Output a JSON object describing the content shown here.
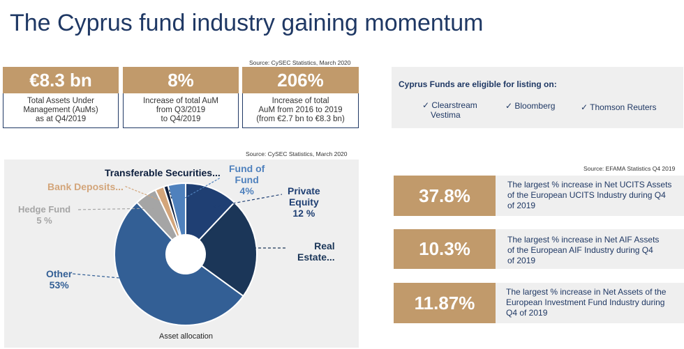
{
  "title": "The Cyprus fund industry gaining momentum",
  "kpi_source": "Source: CySEC Statistics, March 2020",
  "kpis": [
    {
      "value": "€8.3 bn",
      "lines": [
        "Total Assets Under",
        "Management (AuMs)",
        "as at Q4/2019"
      ]
    },
    {
      "value": "8%",
      "lines": [
        "Increase of total AuM",
        "from Q3/2019",
        "to Q4/2019"
      ]
    },
    {
      "value": "206%",
      "lines": [
        "Increase of total",
        "AuM from 2016 to 2019",
        "(from €2.7 bn to €8.3 bn)"
      ]
    }
  ],
  "listing": {
    "title": "Cyprus Funds are eligible for listing on:",
    "platforms": [
      {
        "line1": "✓ Clearstream",
        "line2": "Vestima"
      },
      {
        "line1": "✓ Bloomberg",
        "line2": ""
      },
      {
        "line1": "✓ Thomson Reuters",
        "line2": ""
      }
    ]
  },
  "chart_source": "Source: CySEC Statistics, March 2020",
  "chart_data": {
    "type": "pie",
    "caption": "Asset allocation",
    "slices": [
      {
        "label": "Private Equity",
        "value": 12,
        "value_text": "12 %",
        "color": "#1f3f73"
      },
      {
        "label": "Real Estate...",
        "value": 23,
        "value_text": "",
        "color": "#1b3658"
      },
      {
        "label": "Other",
        "value": 53,
        "value_text": "53%",
        "color": "#335f95"
      },
      {
        "label": "Hedge Fund",
        "value": 5,
        "value_text": "5 %",
        "color": "#a5a5a5"
      },
      {
        "label": "Bank Deposits...",
        "value": 2,
        "value_text": "",
        "color": "#d3a57a"
      },
      {
        "label": "Transferable Securities...",
        "value": 1,
        "value_text": "",
        "color": "#0c1e3d"
      },
      {
        "label": "Fund of Fund",
        "value": 4,
        "value_text": "4%",
        "color": "#4f81bd"
      }
    ]
  },
  "chart_labels": {
    "transferable": "Transferable Securities...",
    "fund_of_fund": [
      "Fund of",
      "Fund",
      "4%"
    ],
    "private_equity": [
      "Private",
      "Equity",
      "12 %"
    ],
    "real_estate": [
      "Real",
      "Estate..."
    ],
    "bank_deposits": "Bank Deposits...",
    "hedge_fund": [
      "Hedge Fund",
      "5 %"
    ],
    "other": [
      "Other",
      "53%"
    ]
  },
  "efama_source": "Source: EFAMA Statistics Q4 2019",
  "efama_stats": [
    {
      "value": "37.8%",
      "lines": [
        "The largest % increase in Net UCITS Assets",
        "of  the European UCITS Industry during Q4",
        "of 2019"
      ]
    },
    {
      "value": "10.3%",
      "lines": [
        "The largest % increase in Net AIF Assets",
        "of the European AIF Industry during Q4",
        "of 2019"
      ]
    },
    {
      "value": "11.87%",
      "lines": [
        "The largest % increase in Net Assets of the",
        "European Investment Fund Industry during",
        "Q4 of 2019"
      ]
    }
  ]
}
